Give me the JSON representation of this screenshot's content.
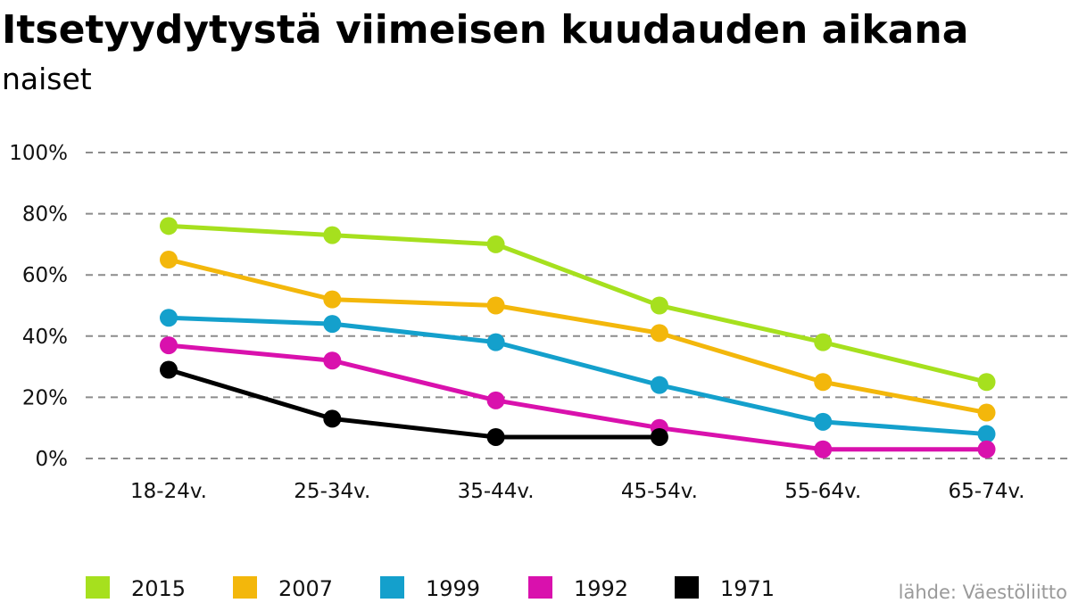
{
  "chart_data": {
    "type": "line",
    "title": "Itsetyydytystä viimeisen kuudauden aikana",
    "subtitle": "naiset",
    "categories": [
      "18-24v.",
      "25-34v.",
      "35-44v.",
      "45-54v.",
      "55-64v.",
      "65-74v."
    ],
    "ylim": [
      0,
      100
    ],
    "y_ticks": [
      0,
      20,
      40,
      60,
      80,
      100
    ],
    "y_tick_labels": [
      "0%",
      "20%",
      "40%",
      "60%",
      "80%",
      "100%"
    ],
    "grid": true,
    "legend_position": "bottom",
    "series": [
      {
        "name": "2015",
        "color": "#a6e01e",
        "values": [
          76,
          73,
          70,
          50,
          38,
          25
        ]
      },
      {
        "name": "2007",
        "color": "#f3b70b",
        "values": [
          65,
          52,
          50,
          41,
          25,
          15
        ]
      },
      {
        "name": "1999",
        "color": "#14a0cc",
        "values": [
          46,
          44,
          38,
          24,
          12,
          8
        ]
      },
      {
        "name": "1992",
        "color": "#d911ad",
        "values": [
          37,
          32,
          19,
          10,
          3,
          3
        ]
      },
      {
        "name": "1971",
        "color": "#000000",
        "values": [
          29,
          13,
          7,
          7,
          null,
          null
        ]
      }
    ],
    "source": "lähde: Väestöliitto"
  }
}
